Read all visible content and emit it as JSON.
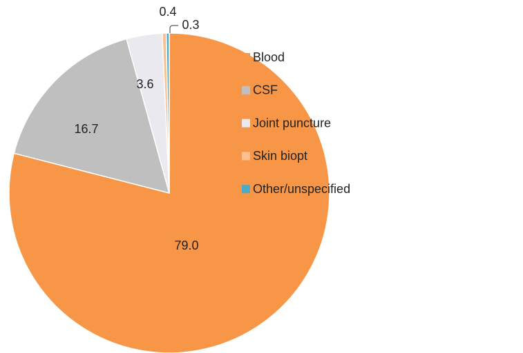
{
  "chart_data": {
    "type": "pie",
    "categories": [
      "Blood",
      "CSF",
      "Joint puncture",
      "Skin biopt",
      "Other/unspecified"
    ],
    "values": [
      79.0,
      16.7,
      3.6,
      0.4,
      0.3
    ],
    "value_labels": [
      "79.0",
      "16.7",
      "3.6",
      "0.4",
      "0.3"
    ],
    "colors": [
      "#f79646",
      "#bfbfbf",
      "#e9e9ef",
      "#fac090",
      "#4bacc6"
    ],
    "legend": "right"
  }
}
